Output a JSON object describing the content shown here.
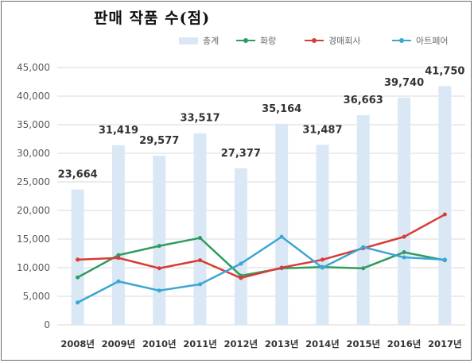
{
  "chart_data": {
    "type": "bar",
    "title": "판매 작품 수(점)",
    "categories": [
      "2008년",
      "2009년",
      "2010년",
      "2011년",
      "2012년",
      "2013년",
      "2014년",
      "2015년",
      "2016년",
      "2017년"
    ],
    "ylim": [
      0,
      45000
    ],
    "yticks": [
      0,
      5000,
      10000,
      15000,
      20000,
      25000,
      30000,
      35000,
      40000,
      45000
    ],
    "ytick_labels": [
      "0",
      "5,000",
      "10,000",
      "15,000",
      "20,000",
      "25,000",
      "30,000",
      "35,000",
      "40,000",
      "45,000"
    ],
    "grid": "horizontal",
    "legend_position": "top",
    "series": [
      {
        "name": "총계",
        "type": "bar",
        "color": "#dae8f5",
        "values": [
          23664,
          31419,
          29577,
          33517,
          27377,
          35164,
          31487,
          36663,
          39740,
          41750
        ],
        "labels": [
          "23,664",
          "31,419",
          "29,577",
          "33,517",
          "27,377",
          "35,164",
          "31,487",
          "36,663",
          "39,740",
          "41,750"
        ]
      },
      {
        "name": "화랑",
        "type": "line",
        "color": "#2e9c5e",
        "values": [
          8300,
          12200,
          13800,
          15200,
          8600,
          9900,
          10100,
          9900,
          12700,
          11300
        ]
      },
      {
        "name": "경매회사",
        "type": "line",
        "color": "#d93b35",
        "values": [
          11400,
          11700,
          9900,
          11300,
          8200,
          10000,
          11400,
          13400,
          15400,
          19300
        ]
      },
      {
        "name": "아트페어",
        "type": "line",
        "color": "#3aa6d4",
        "values": [
          3900,
          7600,
          6000,
          7100,
          10700,
          15400,
          10000,
          13600,
          11800,
          11400
        ]
      }
    ]
  }
}
